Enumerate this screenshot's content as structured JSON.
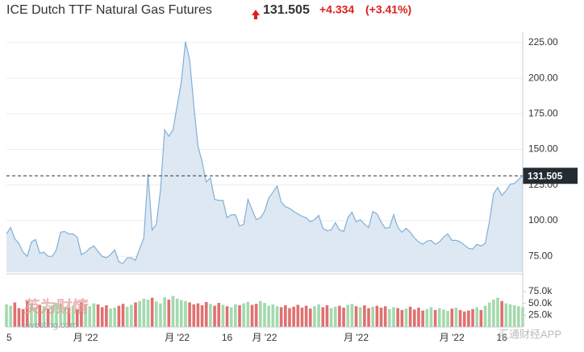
{
  "chart_data": [
    {
      "type": "area",
      "title": "ICE Dutch TTF Natural Gas Futures",
      "last_price": 131.505,
      "change": "+4.334",
      "change_pct": "(+3.41%)",
      "color": "#7fb0d8",
      "fill": "#dde8f3",
      "up_color": "#d9201f",
      "values": [
        90.7,
        95.2,
        87.4,
        84.0,
        77.8,
        75.0,
        85.1,
        86.8,
        77.2,
        77.8,
        75,
        75,
        79.5,
        91.9,
        92.4,
        90.7,
        90.7,
        88.5,
        76.1,
        77.8,
        80.6,
        82.3,
        78.4,
        75,
        73.9,
        76.1,
        79.5,
        71.1,
        69.9,
        73.9,
        73.9,
        72.2,
        80.6,
        87.9,
        132.9,
        93.5,
        97.5,
        121.6,
        163.8,
        159.3,
        163.8,
        180.6,
        197.5,
        225.6,
        213.2,
        180.6,
        152.5,
        141.3,
        127.2,
        130.1,
        114.9,
        114.3,
        114.3,
        102.0,
        104.2,
        104.2,
        96.3,
        97.5,
        114.9,
        107.6,
        100.8,
        102.0,
        106.5,
        116.0,
        119.9,
        124.4,
        113.2,
        109.8,
        108.7,
        106.5,
        104.8,
        103.1,
        102.0,
        99.2,
        100.8,
        103.7,
        94.7,
        93.0,
        93.5,
        98.6,
        93.5,
        92.4,
        102.0,
        105.9,
        99.2,
        100.8,
        97.5,
        95.2,
        106.5,
        104.8,
        99.2,
        94.7,
        95.2,
        104.2,
        95.2,
        91.9,
        94.7,
        91.9,
        87.9,
        85.1,
        83.4,
        85.7,
        86.2,
        83.4,
        85.1,
        88.5,
        90.7,
        86.2,
        86.2,
        85.1,
        82.9,
        80.6,
        80.1,
        83.4,
        82.3,
        84.0,
        99.2,
        118.8,
        123.3,
        117.7,
        121.1,
        125.6,
        126.1,
        128.9,
        131.5
      ],
      "ylim": [
        63.8,
        232.3
      ],
      "yticks": [
        {
          "value": 75,
          "label": "75.00"
        },
        {
          "value": 100,
          "label": "100.00"
        },
        {
          "value": 125,
          "label": "125.00"
        },
        {
          "value": 150,
          "label": "150.00"
        },
        {
          "value": 175,
          "label": "175.00"
        },
        {
          "value": 200,
          "label": "200.00"
        },
        {
          "value": 225,
          "label": "225.00"
        }
      ],
      "grid": true
    },
    {
      "type": "bar",
      "up_color": "#a3d9ae",
      "down_color": "#e07070",
      "categories": [
        "5",
        null,
        null,
        null,
        null,
        null,
        null,
        null,
        null,
        null,
        null,
        null,
        null,
        null,
        null,
        null,
        null,
        null,
        null,
        "月 '22",
        null,
        null,
        null,
        null,
        null,
        null,
        null,
        null,
        null,
        null,
        null,
        null,
        null,
        null,
        null,
        null,
        null,
        null,
        null,
        null,
        null,
        "月 '22",
        null,
        null,
        null,
        null,
        null,
        null,
        null,
        null,
        null,
        null,
        null,
        "16",
        null,
        null,
        null,
        null,
        null,
        null,
        null,
        null,
        "月 '22",
        null,
        null,
        null,
        null,
        null,
        null,
        null,
        null,
        null,
        null,
        null,
        null,
        null,
        null,
        null,
        null,
        null,
        null,
        null,
        null,
        null,
        "月 '22",
        null,
        null,
        null,
        null,
        null,
        null,
        null,
        null,
        null,
        null,
        null,
        null,
        null,
        null,
        null,
        null,
        null,
        null,
        null,
        null,
        null,
        null,
        "月 '22",
        null,
        null,
        null,
        null,
        null,
        null,
        null,
        null,
        null,
        null,
        null,
        "16",
        null,
        null,
        null,
        null,
        null
      ],
      "values": [
        48000,
        45000,
        52000,
        40000,
        38000,
        55000,
        50000,
        42000,
        47000,
        44000,
        39000,
        46000,
        51000,
        49000,
        43000,
        41000,
        45000,
        38000,
        52000,
        47000,
        44000,
        50000,
        48000,
        42000,
        46000,
        39000,
        41000,
        45000,
        49000,
        43000,
        47000,
        52000,
        55000,
        60000,
        58000,
        62000,
        54000,
        50000,
        63000,
        58000,
        66000,
        60000,
        57000,
        55000,
        52000,
        48000,
        50000,
        46000,
        53000,
        49000,
        45000,
        51000,
        47000,
        44000,
        42000,
        48000,
        46000,
        50000,
        53000,
        47000,
        49000,
        55000,
        51000,
        45000,
        48000,
        44000,
        42000,
        46000,
        40000,
        43000,
        47000,
        41000,
        45000,
        39000,
        44000,
        48000,
        42000,
        46000,
        40000,
        43000,
        45000,
        41000,
        47000,
        49000,
        44000,
        42000,
        46000,
        40000,
        43000,
        45000,
        41000,
        44000,
        38000,
        42000,
        40000,
        36000,
        39000,
        43000,
        37000,
        41000,
        35000,
        38000,
        42000,
        36000,
        40000,
        37000,
        34000,
        39000,
        41000,
        36000,
        33000,
        35000,
        38000,
        42000,
        36000,
        45000,
        52000,
        58000,
        62000,
        55000,
        50000,
        48000,
        46000,
        44000,
        42000
      ],
      "ylim": [
        0,
        104000
      ],
      "yticks": [
        {
          "value": 25000,
          "label": "25.0k"
        },
        {
          "value": 50000,
          "label": "50.0k"
        },
        {
          "value": 75000,
          "label": "75.0k"
        }
      ]
    }
  ],
  "watermarks": [
    "英为财情",
    "Investing.com",
    "汇通财经APP"
  ]
}
